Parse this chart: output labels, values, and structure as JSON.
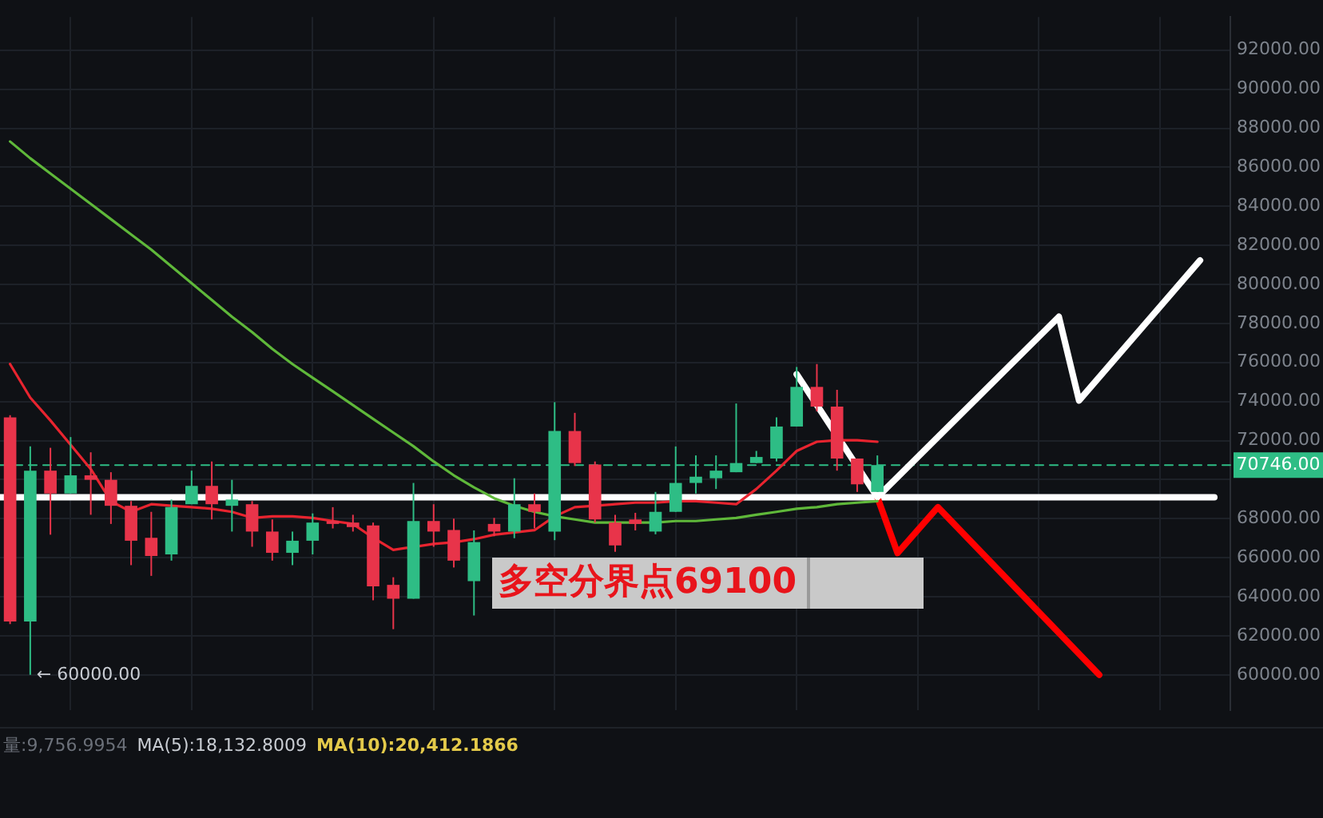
{
  "chart_data": {
    "type": "candlestick",
    "categories": [
      null,
      null,
      null,
      null,
      null,
      null,
      null,
      null,
      null,
      null,
      null,
      null,
      null,
      null,
      null,
      null,
      null,
      null,
      null,
      null,
      null,
      null,
      null,
      null,
      null,
      null,
      null,
      null,
      null,
      null,
      null,
      null,
      null,
      null,
      null,
      null,
      null,
      null,
      null,
      null,
      null,
      null,
      null,
      null,
      null,
      null,
      null,
      null,
      null,
      null,
      null,
      null,
      null,
      null,
      null,
      null,
      null,
      null,
      null,
      null,
      null
    ],
    "ohlc": [
      [
        73190,
        73300,
        62600,
        62730
      ],
      [
        62730,
        71700,
        60000,
        70460
      ],
      [
        70460,
        71630,
        67180,
        69290
      ],
      [
        69290,
        72180,
        69290,
        70220
      ],
      [
        70220,
        71400,
        68200,
        69990
      ],
      [
        69990,
        70380,
        67730,
        68660
      ],
      [
        68660,
        68900,
        65620,
        66870
      ],
      [
        67020,
        68350,
        65070,
        66090
      ],
      [
        66170,
        68980,
        65850,
        68590
      ],
      [
        68740,
        70460,
        68740,
        69680
      ],
      [
        69680,
        70930,
        67960,
        68740
      ],
      [
        68660,
        69990,
        67340,
        68980
      ],
      [
        68740,
        68900,
        66560,
        67340
      ],
      [
        67340,
        67960,
        65850,
        66250
      ],
      [
        66250,
        67340,
        65620,
        66870
      ],
      [
        66870,
        68270,
        66170,
        67800
      ],
      [
        67880,
        68590,
        67500,
        67730
      ],
      [
        67800,
        68200,
        67340,
        67570
      ],
      [
        67650,
        67800,
        63820,
        64530
      ],
      [
        64610,
        65000,
        62340,
        63900
      ],
      [
        63900,
        69830,
        63900,
        67880
      ],
      [
        67880,
        68740,
        66560,
        67340
      ],
      [
        67420,
        68000,
        65500,
        65850
      ],
      [
        64800,
        67400,
        63040,
        66800
      ],
      [
        67730,
        68040,
        67100,
        67340
      ],
      [
        67340,
        70070,
        67000,
        68740
      ],
      [
        68740,
        69290,
        67500,
        68350
      ],
      [
        67340,
        73970,
        66900,
        72490
      ],
      [
        72490,
        73420,
        70700,
        70850
      ],
      [
        70770,
        70930,
        67800,
        67960
      ],
      [
        67800,
        68200,
        66300,
        66630
      ],
      [
        67960,
        68300,
        67400,
        67730
      ],
      [
        67340,
        69370,
        67200,
        68350
      ],
      [
        68350,
        71700,
        68350,
        69830
      ],
      [
        69830,
        71240,
        69290,
        70150
      ],
      [
        70070,
        71240,
        69520,
        70460
      ],
      [
        70380,
        73900,
        70380,
        70850
      ],
      [
        70850,
        71470,
        70850,
        71160
      ],
      [
        71080,
        73190,
        70930,
        72720
      ],
      [
        72720,
        75770,
        72720,
        74750
      ],
      [
        74750,
        75920,
        73500,
        73740
      ],
      [
        73740,
        74600,
        70460,
        71080
      ],
      [
        71080,
        71080,
        69370,
        69760
      ],
      [
        69370,
        71240,
        69370,
        70746
      ],
      null,
      null,
      null,
      null,
      null,
      null,
      null,
      null,
      null,
      null,
      null,
      null,
      null,
      null,
      null,
      null,
      null
    ],
    "colors": [
      "#e8344a",
      "#2ebd85",
      "#e8344a",
      "#2ebd85",
      "#e8344a",
      "#e8344a",
      "#e8344a",
      "#e8344a",
      "#2ebd85",
      "#2ebd85",
      "#e8344a",
      "#2ebd85",
      "#e8344a",
      "#e8344a",
      "#2ebd85",
      "#2ebd85",
      "#e8344a",
      "#e8344a",
      "#e8344a",
      "#e8344a",
      "#2ebd85",
      "#e8344a",
      "#e8344a",
      "#2ebd85",
      "#e8344a",
      "#2ebd85",
      "#e8344a",
      "#2ebd85",
      "#e8344a",
      "#e8344a",
      "#e8344a",
      "#e8344a",
      "#2ebd85",
      "#2ebd85",
      "#2ebd85",
      "#2ebd85",
      "#2ebd85",
      "#2ebd85",
      "#2ebd85",
      "#2ebd85",
      "#e8344a",
      "#e8344a",
      "#e8344a",
      "#2ebd85",
      null,
      null,
      null,
      null,
      null,
      null,
      null,
      null,
      null,
      null,
      null,
      null,
      null,
      null,
      null,
      null,
      null
    ],
    "series": [
      {
        "type": "line",
        "color": "#e8242f",
        "values": [
          75920,
          74200,
          73030,
          71790,
          70540,
          68900,
          68350,
          68740,
          68660,
          68590,
          68510,
          68350,
          68040,
          68120,
          68120,
          68040,
          67880,
          67730,
          67020,
          66400,
          null,
          66710,
          66790,
          66950,
          67180,
          null,
          67410,
          68120,
          68590,
          68660,
          68740,
          68820,
          68820,
          68900,
          68900,
          68820,
          68740,
          69520,
          70460,
          71470,
          71940,
          72020,
          72020,
          71940,
          null,
          null,
          null,
          null,
          null,
          null,
          null,
          null,
          null,
          null,
          null,
          null,
          null,
          null,
          null,
          null,
          null
        ]
      },
      {
        "type": "line",
        "color": "#5fb83a",
        "values": [
          87320,
          86460,
          85680,
          84900,
          84120,
          83340,
          82560,
          81780,
          80920,
          80060,
          79200,
          78340,
          77560,
          76700,
          75920,
          75220,
          74520,
          73820,
          73110,
          72410,
          71710,
          70930,
          70220,
          69600,
          69050,
          68660,
          68350,
          68120,
          67960,
          67800,
          67800,
          67800,
          67800,
          67880,
          67880,
          67960,
          68040,
          68200,
          68350,
          68510,
          68590,
          68740,
          68820,
          68900,
          null,
          null,
          null,
          null,
          null,
          null,
          null,
          null,
          null,
          null,
          null,
          null,
          null,
          null,
          null,
          null,
          null
        ]
      },
      {
        "type": "line",
        "color": "#ffffff",
        "values": [
          null,
          null,
          null,
          null,
          null,
          null,
          null,
          null,
          null,
          null,
          null,
          null,
          null,
          null,
          null,
          null,
          null,
          null,
          null,
          null,
          null,
          null,
          null,
          null,
          null,
          null,
          null,
          null,
          null,
          null,
          null,
          null,
          null,
          null,
          null,
          null,
          null,
          null,
          null,
          75400,
          null,
          null,
          null,
          69100,
          null,
          null,
          null,
          null,
          null,
          null,
          null,
          null,
          78340,
          74050,
          null,
          null,
          null,
          null,
          null,
          81230,
          null
        ]
      },
      {
        "type": "line",
        "color": "#ff0000",
        "values": [
          null,
          null,
          null,
          null,
          null,
          null,
          null,
          null,
          null,
          null,
          null,
          null,
          null,
          null,
          null,
          null,
          null,
          null,
          null,
          null,
          null,
          null,
          null,
          null,
          null,
          null,
          null,
          null,
          null,
          null,
          null,
          null,
          null,
          null,
          null,
          null,
          null,
          null,
          null,
          null,
          null,
          null,
          null,
          69100,
          66240,
          null,
          68590,
          null,
          null,
          null,
          null,
          null,
          null,
          null,
          60000,
          null,
          null,
          null,
          null,
          null,
          null
        ]
      }
    ],
    "ylim": [
      58200,
      93700
    ],
    "yticks": [
      {
        "value": 60000,
        "label": "60000.00"
      },
      {
        "value": 62000,
        "label": "62000.00"
      },
      {
        "value": 64000,
        "label": "64000.00"
      },
      {
        "value": 66000,
        "label": "66000.00"
      },
      {
        "value": 68000,
        "label": "68000.00"
      },
      {
        "value": 70000,
        "label": null
      },
      {
        "value": 72000,
        "label": "72000.00"
      },
      {
        "value": 74000,
        "label": "74000.00"
      },
      {
        "value": 76000,
        "label": "76000.00"
      },
      {
        "value": 78000,
        "label": "78000.00"
      },
      {
        "value": 80000,
        "label": "80000.00"
      },
      {
        "value": 82000,
        "label": "82000.00"
      },
      {
        "value": 84000,
        "label": "84000.00"
      },
      {
        "value": 86000,
        "label": "86000.00"
      },
      {
        "value": 88000,
        "label": "88000.00"
      },
      {
        "value": 90000,
        "label": "90000.00"
      },
      {
        "value": 92000,
        "label": "92000.00"
      }
    ],
    "ref_lines": [
      {
        "axis": "y",
        "value": 69100,
        "label": "多空分界点69100",
        "color": "#ffffff",
        "line_style": "solid"
      },
      {
        "axis": "y",
        "value": 70746,
        "label": "70746.00",
        "color": "#2ebd85",
        "line_style": "dashed"
      }
    ],
    "annotations": [
      "← 60000.00",
      "量:9,756.9954",
      "MA(5):18,132.8009",
      "MA(10):20,412.1866"
    ],
    "grid": true,
    "tick_labels": "y",
    "legend": false,
    "marker": "none"
  }
}
